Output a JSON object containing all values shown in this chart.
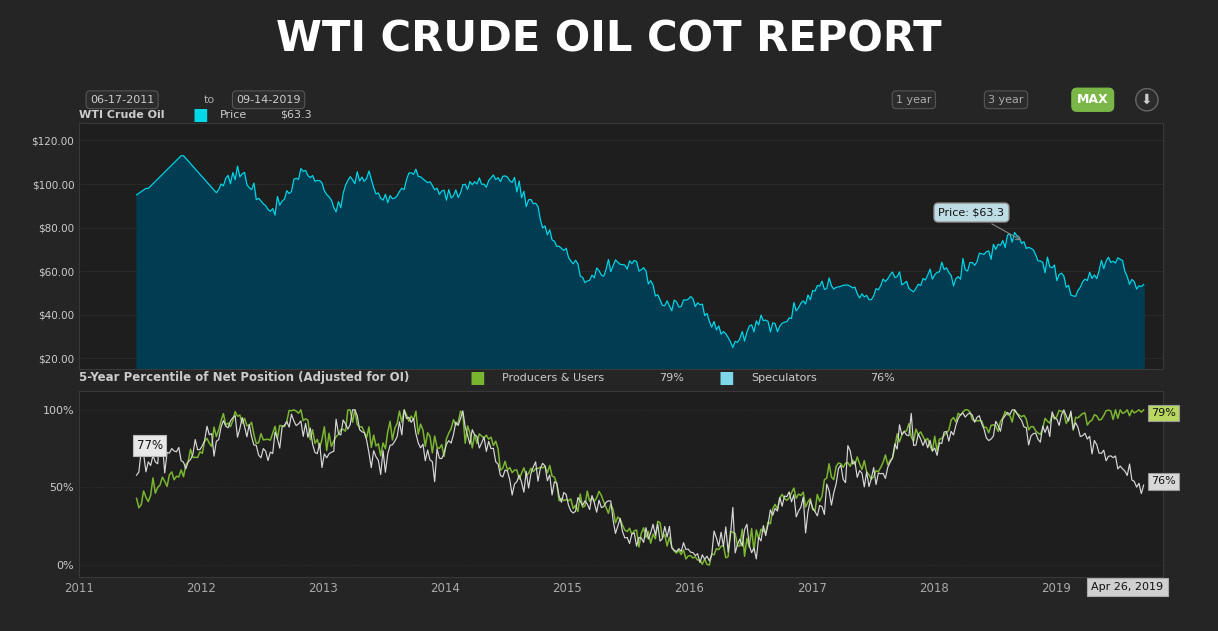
{
  "title": "WTI CRUDE OIL COT REPORT",
  "title_bg": "#252525",
  "title_color": "#ffffff",
  "title_fontsize": 30,
  "chart_bg": "#1e1e1e",
  "panel_bg": "#222222",
  "border_color": "#7ab648",
  "date_start": "06-17-2011",
  "date_end": "09-14-2019",
  "price_label": "WTI Crude Oil",
  "price_color": "#00d8e8",
  "price_value": "$63.3",
  "price_tooltip": "Price: $63.3",
  "price_fill_color": "#003d52",
  "upper_ylim": [
    15,
    128
  ],
  "upper_yticks": [
    20,
    40,
    60,
    80,
    100,
    120
  ],
  "lower_title": "5-Year Percentile of Net Position (Adjusted for OI)",
  "lower_legend1": "Producers & Users",
  "lower_val1": "79%",
  "lower_color1": "#7ab530",
  "lower_legend2": "Speculators",
  "lower_val2": "76%",
  "lower_color2": "#7fd8e8",
  "spec_line_color": "#d8d8d8",
  "lower_ylim": [
    -8,
    112
  ],
  "lower_yticks": [
    0,
    50,
    100
  ],
  "lower_ytick_labels": [
    "0%",
    "50%",
    "100%"
  ],
  "grid_color": "#333333",
  "text_color": "#cccccc",
  "annotation_77": "77%",
  "annotation_79": "79%",
  "annotation_76": "76%",
  "annotation_date": "Apr 26, 2019",
  "stripe_color1": "#7ab648",
  "stripe_color2": "#a8c87a",
  "years": [
    2011,
    2012,
    2013,
    2014,
    2015,
    2016,
    2017,
    2018,
    2019
  ]
}
